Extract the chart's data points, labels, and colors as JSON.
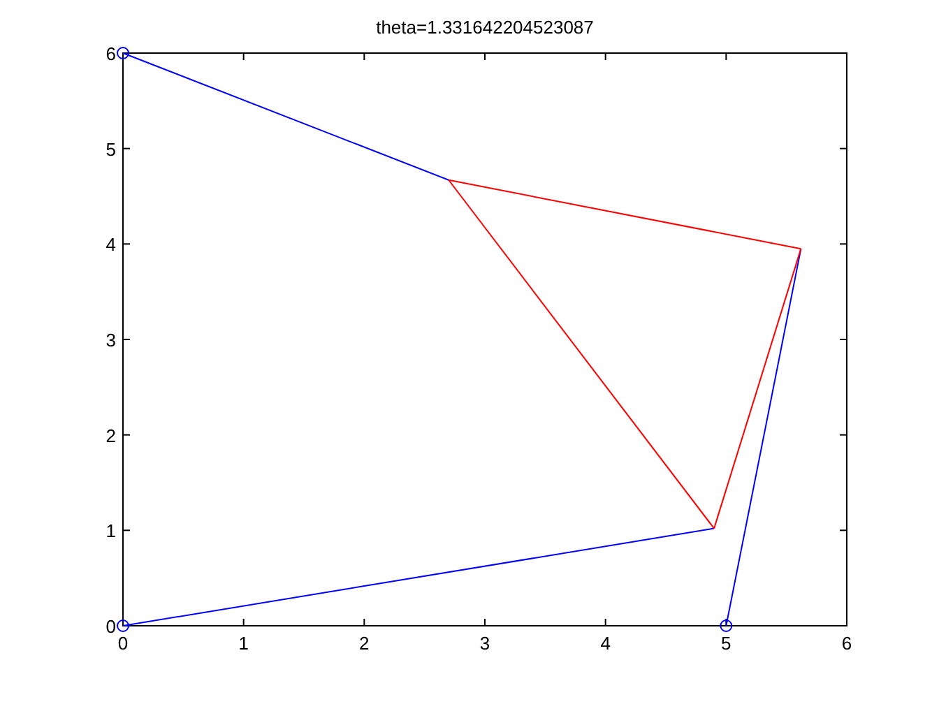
{
  "chart_data": {
    "type": "line",
    "title": "theta=1.331642204523087",
    "xlim": [
      0,
      6
    ],
    "xticks": [
      0,
      1,
      2,
      3,
      4,
      5,
      6
    ],
    "ylim": [
      0,
      6
    ],
    "yticks": [
      0,
      1,
      2,
      3,
      4,
      5,
      6
    ],
    "grid": false,
    "marker": "none",
    "line_style": "solid",
    "series": [
      {
        "color": "#0000ff",
        "x": [
          0,
          2.7
        ],
        "values": [
          6,
          4.67
        ]
      },
      {
        "color": "#0000ff",
        "x": [
          0,
          4.9
        ],
        "values": [
          0,
          1.02
        ]
      },
      {
        "color": "#0000ff",
        "x": [
          5,
          5.62
        ],
        "values": [
          0,
          3.95
        ]
      },
      {
        "color": "#ff0000",
        "x": [
          2.7,
          5.62
        ],
        "values": [
          4.67,
          3.95
        ]
      },
      {
        "color": "#ff0000",
        "x": [
          4.9,
          5.62
        ],
        "values": [
          1.02,
          3.95
        ]
      },
      {
        "color": "#ff0000",
        "x": [
          2.7,
          4.9
        ],
        "values": [
          4.67,
          1.02
        ]
      },
      {
        "type": "scatter",
        "color": "#0000ff",
        "marker": "circle",
        "x": [
          0,
          0,
          5
        ],
        "values": [
          6,
          0,
          0
        ]
      }
    ]
  }
}
